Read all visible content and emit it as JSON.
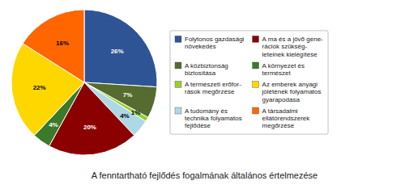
{
  "chart_data": {
    "type": "pie",
    "title": "A fenntartható fejlődés fogalmának általános értelmezése",
    "categories": [
      "Folytonos gazdasági\nnövekedés",
      "A közbiztonság\nbiztosítása",
      "A természeti erőfor-\nrások megőrzése",
      "A tudomány és\ntechnika folyamatos\nfejlődése",
      "A ma és a jövő gene-\nrációk szükség-\nleteinek kielégítése",
      "A környezet és\ntermészet",
      "Az emberek anyagi\njólétének folyamatos\ngyarapodása",
      "A társadalmi\nellátórendszerek\nmegőrzése"
    ],
    "values": [
      26,
      7,
      1,
      4,
      20,
      4,
      22,
      16
    ],
    "value_labels": [
      "26%",
      "7%",
      "1%",
      "4%",
      "20%",
      "4%",
      "22%",
      "16%"
    ],
    "colors": [
      "#2F5496",
      "#556B2F",
      "#9ACD32",
      "#ADD8E6",
      "#8B0000",
      "#3A7A2A",
      "#FFD700",
      "#FF6600"
    ],
    "data_labels": true,
    "legend": "right"
  }
}
